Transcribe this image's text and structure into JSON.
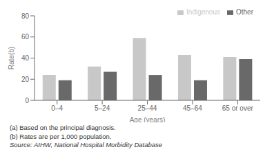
{
  "chart_data": {
    "type": "bar",
    "categories": [
      "0–4",
      "5–24",
      "25–44",
      "45–64",
      "65 or over"
    ],
    "series": [
      {
        "name": "Indigenous",
        "color": "#c8c8c8",
        "values": [
          24,
          32,
          59,
          43,
          41
        ]
      },
      {
        "name": "Other",
        "color": "#696969",
        "values": [
          19,
          27,
          24,
          19,
          39
        ]
      }
    ],
    "xlabel": "Age (years)",
    "ylabel": "Rate(b)",
    "ylim": [
      0,
      80
    ],
    "yticks": [
      0,
      20,
      40,
      60,
      80
    ],
    "grid": false,
    "legend": "upper right",
    "annotations": [
      "(a) Based on the principal diagnosis.",
      "(b) Rates are per 1,000 population.",
      "Source: AIHW, National Hospital Morbidity Database"
    ]
  }
}
